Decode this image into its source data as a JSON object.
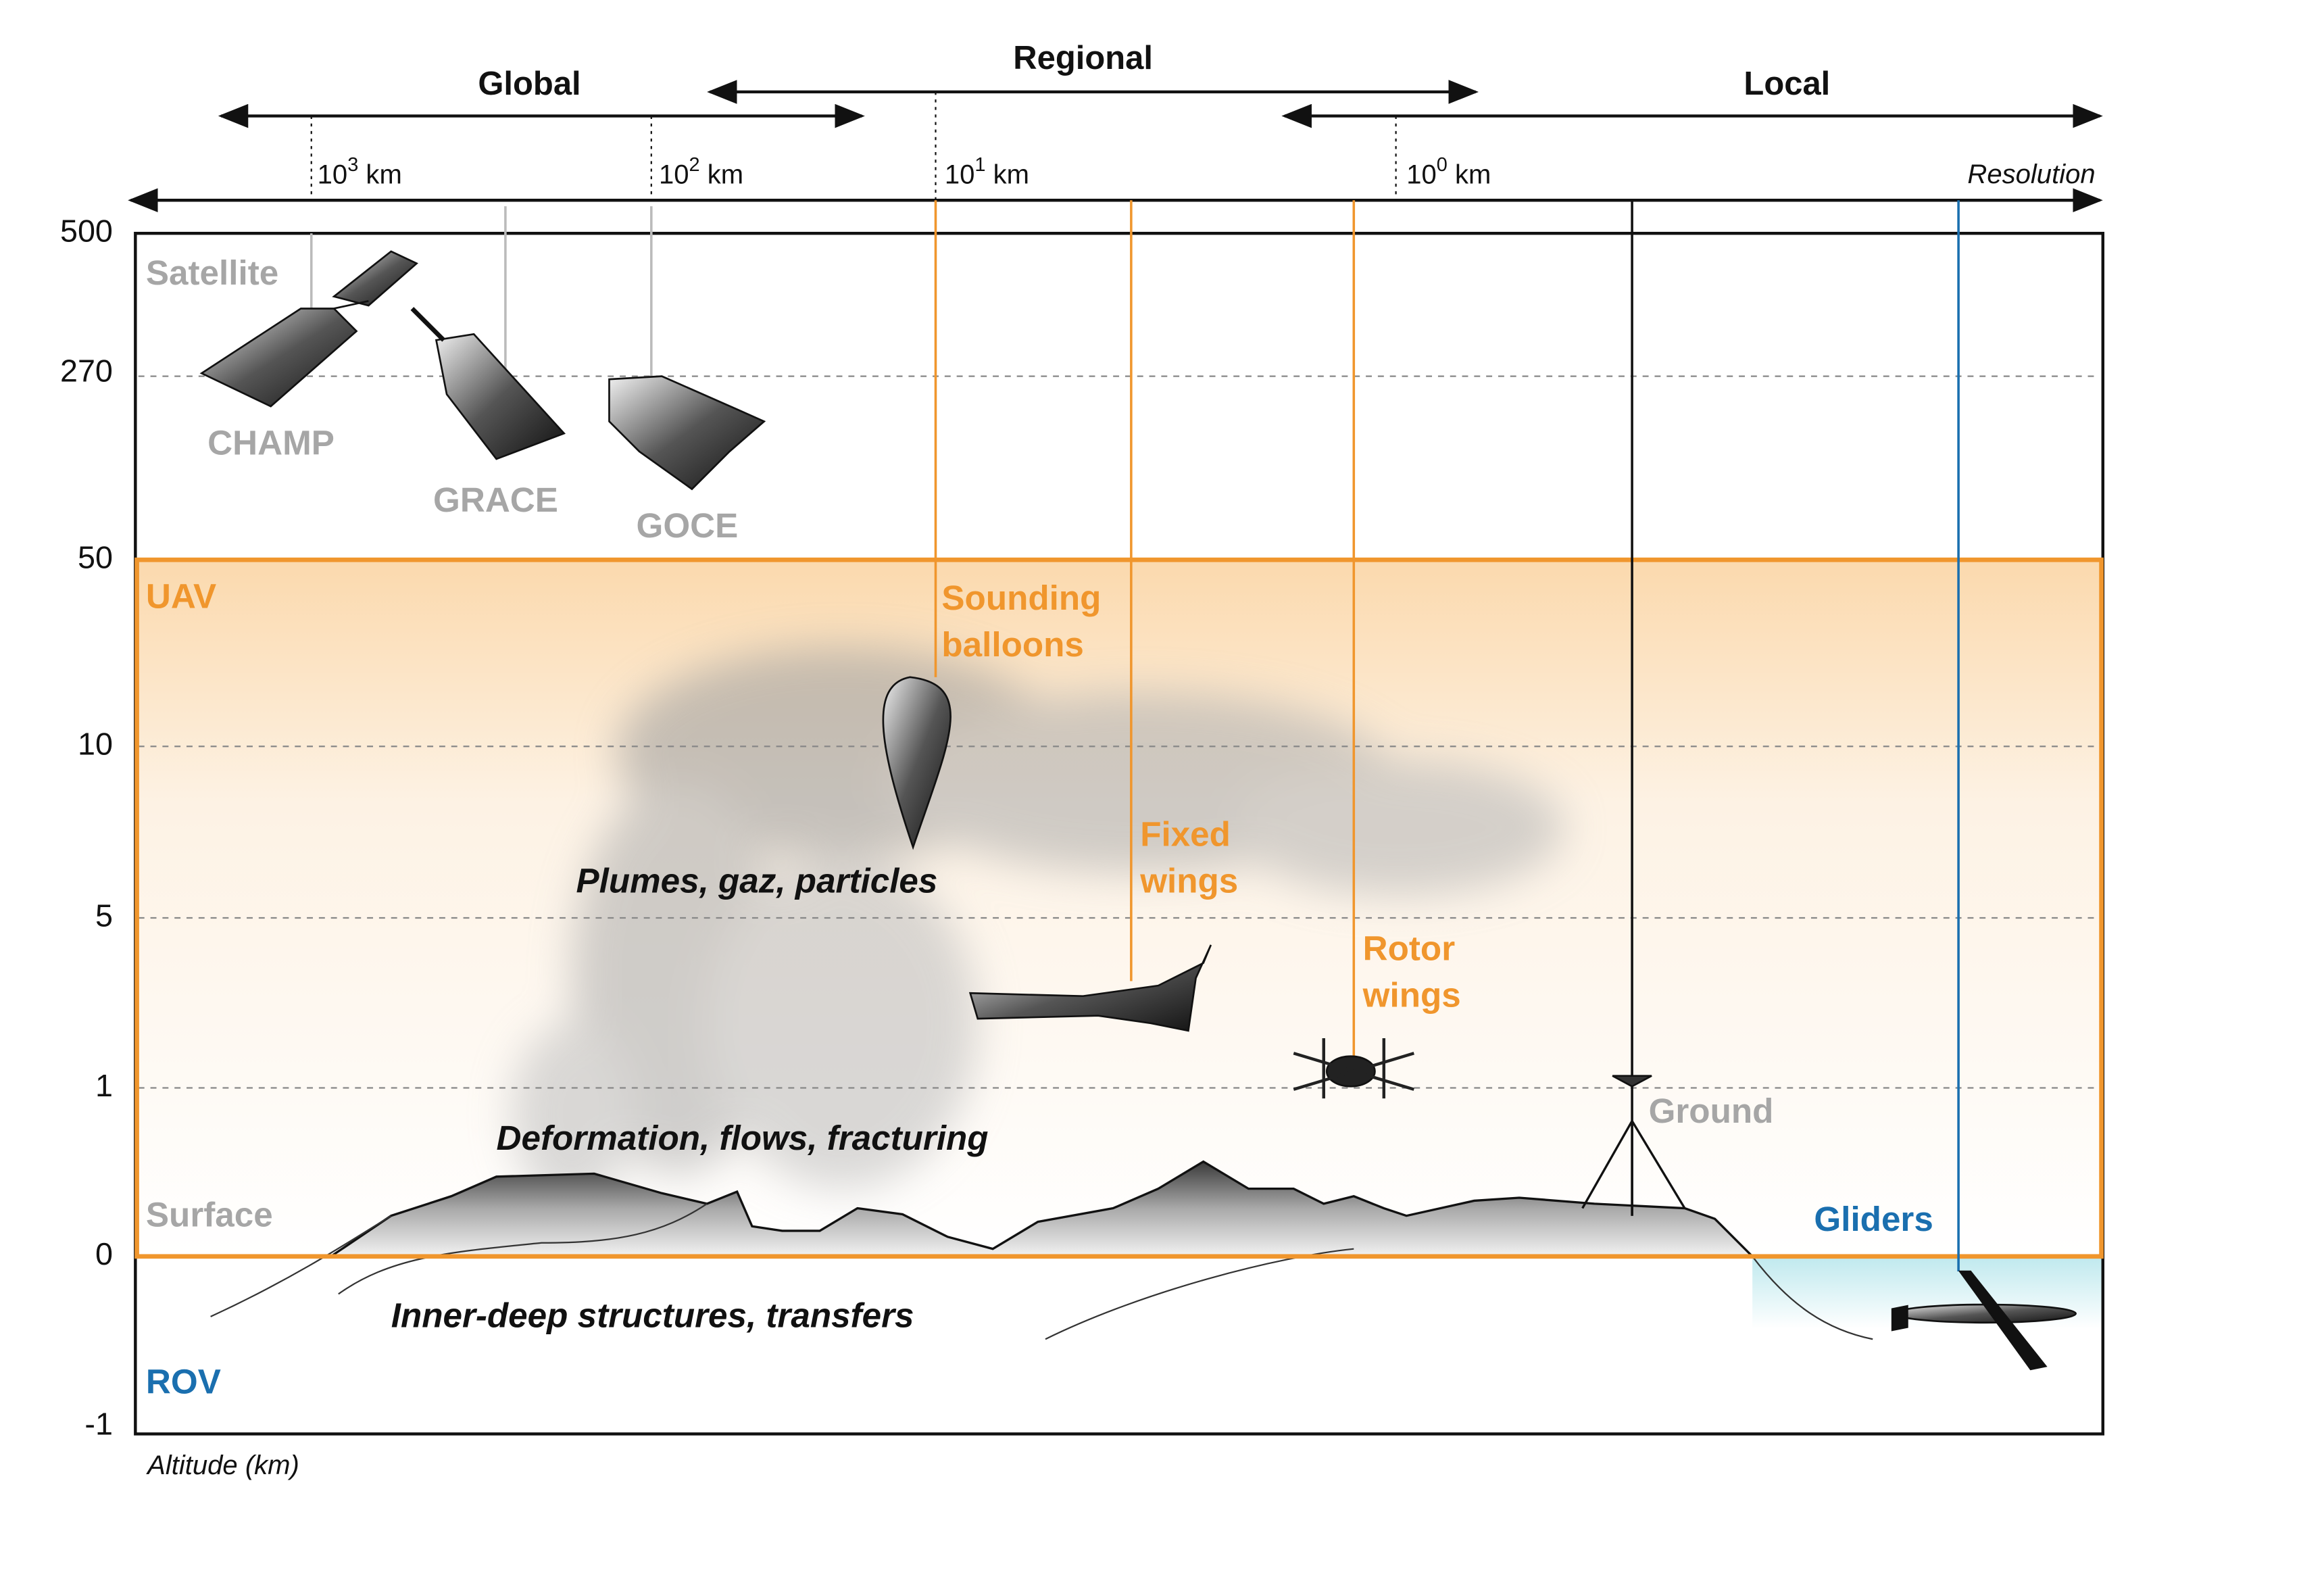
{
  "scales": [
    "Global",
    "Regional",
    "Local"
  ],
  "resolution": {
    "label": "Resolution",
    "ticks": [
      {
        "base": "10",
        "exponent": "3",
        "unit": "km"
      },
      {
        "base": "10",
        "exponent": "2",
        "unit": "km"
      },
      {
        "base": "10",
        "exponent": "1",
        "unit": "km"
      },
      {
        "base": "10",
        "exponent": "0",
        "unit": "km"
      }
    ]
  },
  "altitude": {
    "label": "Altitude (km)",
    "ticks": [
      500,
      270,
      50,
      10,
      5,
      1,
      0,
      -1
    ]
  },
  "domains": [
    "Satellite",
    "UAV",
    "Surface",
    "ROV"
  ],
  "platforms": [
    {
      "lines": [
        "CHAMP"
      ]
    },
    {
      "lines": [
        "GRACE"
      ]
    },
    {
      "lines": [
        "GOCE"
      ]
    },
    {
      "lines": [
        "Sounding",
        "balloons"
      ]
    },
    {
      "lines": [
        "Fixed",
        "wings"
      ]
    },
    {
      "lines": [
        "Rotor",
        "wings"
      ]
    },
    {
      "lines": [
        "Ground"
      ]
    },
    {
      "lines": [
        "Gliders"
      ]
    }
  ],
  "phenomena": [
    "Plumes, gaz, particles",
    "Deformation, flows, fracturing",
    "Inner-deep structures, transfers"
  ]
}
